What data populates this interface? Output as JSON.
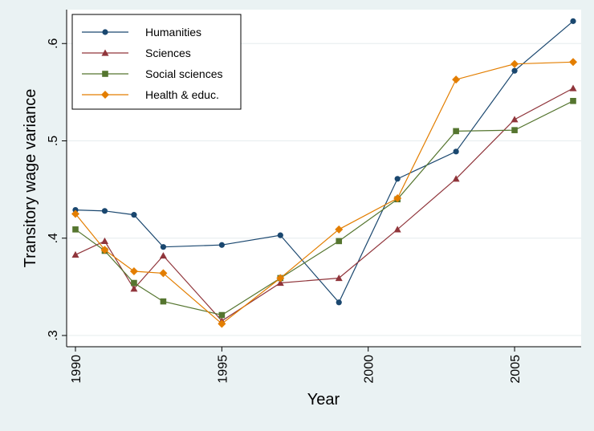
{
  "chart_data": {
    "type": "line",
    "title": "",
    "xlabel": "Year",
    "ylabel": "Transitory wage variance",
    "xlim": [
      1990,
      2007
    ],
    "ylim": [
      0.3,
      0.62
    ],
    "x_ticks": [
      1990,
      1995,
      2000,
      2005
    ],
    "x_tick_labels": [
      "1990",
      "1995",
      "2000",
      "2005"
    ],
    "y_ticks": [
      0.3,
      0.4,
      0.5,
      0.6
    ],
    "y_tick_labels": [
      ".3",
      ".4",
      ".5",
      ".6"
    ],
    "grid": "horizontal",
    "legend_position": "top-left",
    "series": [
      {
        "name": "Humanities",
        "color": "#1a476f",
        "marker": "circle",
        "points": [
          [
            1990,
            0.429
          ],
          [
            1991,
            0.428
          ],
          [
            1992,
            0.424
          ],
          [
            1993,
            0.391
          ],
          [
            1995,
            0.393
          ],
          [
            1997,
            0.403
          ],
          [
            1999,
            0.334
          ],
          [
            2001,
            0.461
          ],
          [
            2003,
            0.489
          ],
          [
            2005,
            0.572
          ],
          [
            2007,
            0.623
          ]
        ]
      },
      {
        "name": "Sciences",
        "color": "#90353b",
        "marker": "triangle",
        "points": [
          [
            1990,
            0.383
          ],
          [
            1991,
            0.397
          ],
          [
            1992,
            0.348
          ],
          [
            1993,
            0.382
          ],
          [
            1995,
            0.315
          ],
          [
            1997,
            0.354
          ],
          [
            1999,
            0.359
          ],
          [
            2001,
            0.409
          ],
          [
            2003,
            0.461
          ],
          [
            2005,
            0.522
          ],
          [
            2007,
            0.554
          ]
        ]
      },
      {
        "name": "Social sciences",
        "color": "#55752f",
        "marker": "square",
        "points": [
          [
            1990,
            0.409
          ],
          [
            1991,
            0.387
          ],
          [
            1992,
            0.354
          ],
          [
            1993,
            0.335
          ],
          [
            1995,
            0.321
          ],
          [
            1997,
            0.359
          ],
          [
            1999,
            0.397
          ],
          [
            2001,
            0.44
          ],
          [
            2003,
            0.51
          ],
          [
            2005,
            0.511
          ],
          [
            2007,
            0.541
          ]
        ]
      },
      {
        "name": "Health & educ.",
        "color": "#e37e00",
        "marker": "diamond",
        "points": [
          [
            1990,
            0.425
          ],
          [
            1991,
            0.388
          ],
          [
            1992,
            0.366
          ],
          [
            1993,
            0.364
          ],
          [
            1995,
            0.312
          ],
          [
            1997,
            0.359
          ],
          [
            1999,
            0.409
          ],
          [
            2001,
            0.441
          ],
          [
            2003,
            0.563
          ],
          [
            2005,
            0.579
          ],
          [
            2007,
            0.581
          ]
        ]
      }
    ]
  }
}
